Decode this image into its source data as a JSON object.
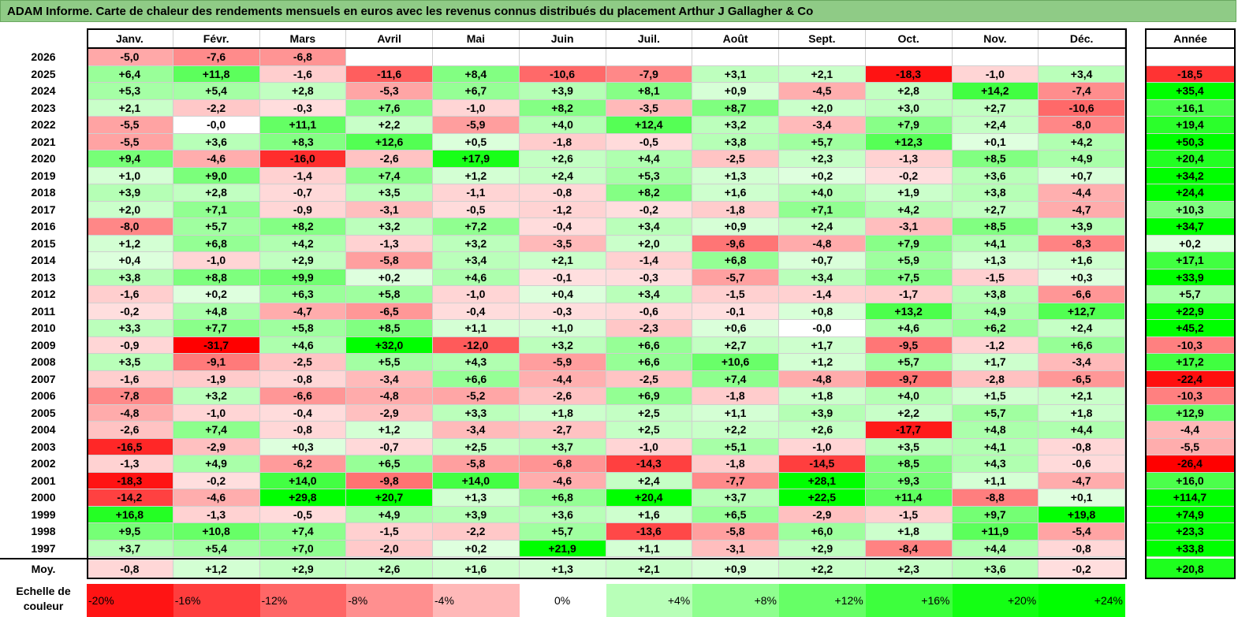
{
  "title": "ADAM Informe. Carte de chaleur des rendements mensuels en euros avec les revenus connus distribués du placement Arthur J Gallagher & Co",
  "chart_data": {
    "type": "heatmap",
    "months": [
      "Janv.",
      "Févr.",
      "Mars",
      "Avril",
      "Mai",
      "Juin",
      "Juil.",
      "Août",
      "Sept.",
      "Oct.",
      "Nov.",
      "Déc."
    ],
    "year_column_label": "Année",
    "rows": [
      {
        "year": "2026",
        "values": [
          "-5,0",
          "-7,6",
          "-6,8",
          "",
          "",
          "",
          "",
          "",
          "",
          "",
          "",
          ""
        ],
        "annual": ""
      },
      {
        "year": "2025",
        "values": [
          "+6,4",
          "+11,8",
          "-1,6",
          "-11,6",
          "+8,4",
          "-10,6",
          "-7,9",
          "+3,1",
          "+2,1",
          "-18,3",
          "-1,0",
          "+3,4"
        ],
        "annual": "-18,5"
      },
      {
        "year": "2024",
        "values": [
          "+5,3",
          "+5,4",
          "+2,8",
          "-5,3",
          "+6,7",
          "+3,9",
          "+8,1",
          "+0,9",
          "-4,5",
          "+2,8",
          "+14,2",
          "-7,4"
        ],
        "annual": "+35,4"
      },
      {
        "year": "2023",
        "values": [
          "+2,1",
          "-2,2",
          "-0,3",
          "+7,6",
          "-1,0",
          "+8,2",
          "-3,5",
          "+8,7",
          "+2,0",
          "+3,0",
          "+2,7",
          "-10,6"
        ],
        "annual": "+16,1"
      },
      {
        "year": "2022",
        "values": [
          "-5,5",
          "-0,0",
          "+11,1",
          "+2,2",
          "-5,9",
          "+4,0",
          "+12,4",
          "+3,2",
          "-3,4",
          "+7,9",
          "+2,4",
          "-8,0"
        ],
        "annual": "+19,4"
      },
      {
        "year": "2021",
        "values": [
          "-5,5",
          "+3,6",
          "+8,3",
          "+12,6",
          "+0,5",
          "-1,8",
          "-0,5",
          "+3,8",
          "+5,7",
          "+12,3",
          "+0,1",
          "+4,2"
        ],
        "annual": "+50,3"
      },
      {
        "year": "2020",
        "values": [
          "+9,4",
          "-4,6",
          "-16,0",
          "-2,6",
          "+17,9",
          "+2,6",
          "+4,4",
          "-2,5",
          "+2,3",
          "-1,3",
          "+8,5",
          "+4,9"
        ],
        "annual": "+20,4"
      },
      {
        "year": "2019",
        "values": [
          "+1,0",
          "+9,0",
          "-1,4",
          "+7,4",
          "+1,2",
          "+2,4",
          "+5,3",
          "+1,3",
          "+0,2",
          "-0,2",
          "+3,6",
          "+0,7"
        ],
        "annual": "+34,2"
      },
      {
        "year": "2018",
        "values": [
          "+3,9",
          "+2,8",
          "-0,7",
          "+3,5",
          "-1,1",
          "-0,8",
          "+8,2",
          "+1,6",
          "+4,0",
          "+1,9",
          "+3,8",
          "-4,4"
        ],
        "annual": "+24,4"
      },
      {
        "year": "2017",
        "values": [
          "+2,0",
          "+7,1",
          "-0,9",
          "-3,1",
          "-0,5",
          "-1,2",
          "-0,2",
          "-1,8",
          "+7,1",
          "+4,2",
          "+2,7",
          "-4,7"
        ],
        "annual": "+10,3"
      },
      {
        "year": "2016",
        "values": [
          "-8,0",
          "+5,7",
          "+8,2",
          "+3,2",
          "+7,2",
          "-0,4",
          "+3,4",
          "+0,9",
          "+2,4",
          "-3,1",
          "+8,5",
          "+3,9"
        ],
        "annual": "+34,7"
      },
      {
        "year": "2015",
        "values": [
          "+1,2",
          "+6,8",
          "+4,2",
          "-1,3",
          "+3,2",
          "-3,5",
          "+2,0",
          "-9,6",
          "-4,8",
          "+7,9",
          "+4,1",
          "-8,3"
        ],
        "annual": "+0,2"
      },
      {
        "year": "2014",
        "values": [
          "+0,4",
          "-1,0",
          "+2,9",
          "-5,8",
          "+3,4",
          "+2,1",
          "-1,4",
          "+6,8",
          "+0,7",
          "+5,9",
          "+1,3",
          "+1,6"
        ],
        "annual": "+17,1"
      },
      {
        "year": "2013",
        "values": [
          "+3,8",
          "+8,8",
          "+9,9",
          "+0,2",
          "+4,6",
          "-0,1",
          "-0,3",
          "-5,7",
          "+3,4",
          "+7,5",
          "-1,5",
          "+0,3"
        ],
        "annual": "+33,9"
      },
      {
        "year": "2012",
        "values": [
          "-1,6",
          "+0,2",
          "+6,3",
          "+5,8",
          "-1,0",
          "+0,4",
          "+3,4",
          "-1,5",
          "-1,4",
          "-1,7",
          "+3,8",
          "-6,6"
        ],
        "annual": "+5,7"
      },
      {
        "year": "2011",
        "values": [
          "-0,2",
          "+4,8",
          "-4,7",
          "-6,5",
          "-0,4",
          "-0,3",
          "-0,6",
          "-0,1",
          "+0,8",
          "+13,2",
          "+4,9",
          "+12,7"
        ],
        "annual": "+22,9"
      },
      {
        "year": "2010",
        "values": [
          "+3,3",
          "+7,7",
          "+5,8",
          "+8,5",
          "+1,1",
          "+1,0",
          "-2,3",
          "+0,6",
          "-0,0",
          "+4,6",
          "+6,2",
          "+2,4"
        ],
        "annual": "+45,2"
      },
      {
        "year": "2009",
        "values": [
          "-0,9",
          "-31,7",
          "+4,6",
          "+32,0",
          "-12,0",
          "+3,2",
          "+6,6",
          "+2,7",
          "+1,7",
          "-9,5",
          "-1,2",
          "+6,6"
        ],
        "annual": "-10,3"
      },
      {
        "year": "2008",
        "values": [
          "+3,5",
          "-9,1",
          "-2,5",
          "+5,5",
          "+4,3",
          "-5,9",
          "+6,6",
          "+10,6",
          "+1,2",
          "+5,7",
          "+1,7",
          "-3,4"
        ],
        "annual": "+17,2"
      },
      {
        "year": "2007",
        "values": [
          "-1,6",
          "-1,9",
          "-0,8",
          "-3,4",
          "+6,6",
          "-4,4",
          "-2,5",
          "+7,4",
          "-4,8",
          "-9,7",
          "-2,8",
          "-6,5"
        ],
        "annual": "-22,4"
      },
      {
        "year": "2006",
        "values": [
          "-7,8",
          "+3,2",
          "-6,6",
          "-4,8",
          "-5,2",
          "-2,6",
          "+6,9",
          "-1,8",
          "+1,8",
          "+4,0",
          "+1,5",
          "+2,1"
        ],
        "annual": "-10,3"
      },
      {
        "year": "2005",
        "values": [
          "-4,8",
          "-1,0",
          "-0,4",
          "-2,9",
          "+3,3",
          "+1,8",
          "+2,5",
          "+1,1",
          "+3,9",
          "+2,2",
          "+5,7",
          "+1,8"
        ],
        "annual": "+12,9"
      },
      {
        "year": "2004",
        "values": [
          "-2,6",
          "+7,4",
          "-0,8",
          "+1,2",
          "-3,4",
          "-2,7",
          "+2,5",
          "+2,2",
          "+2,6",
          "-17,7",
          "+4,8",
          "+4,4"
        ],
        "annual": "-4,4"
      },
      {
        "year": "2003",
        "values": [
          "-16,5",
          "-2,9",
          "+0,3",
          "-0,7",
          "+2,5",
          "+3,7",
          "-1,0",
          "+5,1",
          "-1,0",
          "+3,5",
          "+4,1",
          "-0,8"
        ],
        "annual": "-5,5"
      },
      {
        "year": "2002",
        "values": [
          "-1,3",
          "+4,9",
          "-6,2",
          "+6,5",
          "-5,8",
          "-6,8",
          "-14,3",
          "-1,8",
          "-14,5",
          "+8,5",
          "+4,3",
          "-0,6"
        ],
        "annual": "-26,4"
      },
      {
        "year": "2001",
        "values": [
          "-18,3",
          "-0,2",
          "+14,0",
          "-9,8",
          "+14,0",
          "-4,6",
          "+2,4",
          "-7,7",
          "+28,1",
          "+9,3",
          "+1,1",
          "-4,7"
        ],
        "annual": "+16,0"
      },
      {
        "year": "2000",
        "values": [
          "-14,2",
          "-4,6",
          "+29,8",
          "+20,7",
          "+1,3",
          "+6,8",
          "+20,4",
          "+3,7",
          "+22,5",
          "+11,4",
          "-8,8",
          "+0,1"
        ],
        "annual": "+114,7"
      },
      {
        "year": "1999",
        "values": [
          "+16,8",
          "-1,3",
          "-0,5",
          "+4,9",
          "+3,9",
          "+3,6",
          "+1,6",
          "+6,5",
          "-2,9",
          "-1,5",
          "+9,7",
          "+19,8"
        ],
        "annual": "+74,9"
      },
      {
        "year": "1998",
        "values": [
          "+9,5",
          "+10,8",
          "+7,4",
          "-1,5",
          "-2,2",
          "+5,7",
          "-13,6",
          "-5,8",
          "+6,0",
          "+1,8",
          "+11,9",
          "-5,4"
        ],
        "annual": "+23,3"
      },
      {
        "year": "1997",
        "values": [
          "+3,7",
          "+5,4",
          "+7,0",
          "-2,0",
          "+0,2",
          "+21,9",
          "+1,1",
          "-3,1",
          "+2,9",
          "-8,4",
          "+4,4",
          "-0,8"
        ],
        "annual": "+33,8"
      }
    ],
    "average": {
      "label": "Moy.",
      "values": [
        "-0,8",
        "+1,2",
        "+2,9",
        "+2,6",
        "+1,6",
        "+1,3",
        "+2,1",
        "+0,9",
        "+2,2",
        "+2,3",
        "+3,6",
        "-0,2"
      ],
      "annual": "+20,8"
    },
    "color_scale": {
      "label_line1": "Echelle de",
      "label_line2": "couleur",
      "stops": [
        "-20%",
        "-16%",
        "-12%",
        "-8%",
        "-4%",
        "0%",
        "+4%",
        "+8%",
        "+12%",
        "+16%",
        "+20%",
        "+24%"
      ],
      "negative_color": "#ff0000",
      "neutral_color": "#ffffff",
      "positive_color": "#00ff00"
    }
  }
}
